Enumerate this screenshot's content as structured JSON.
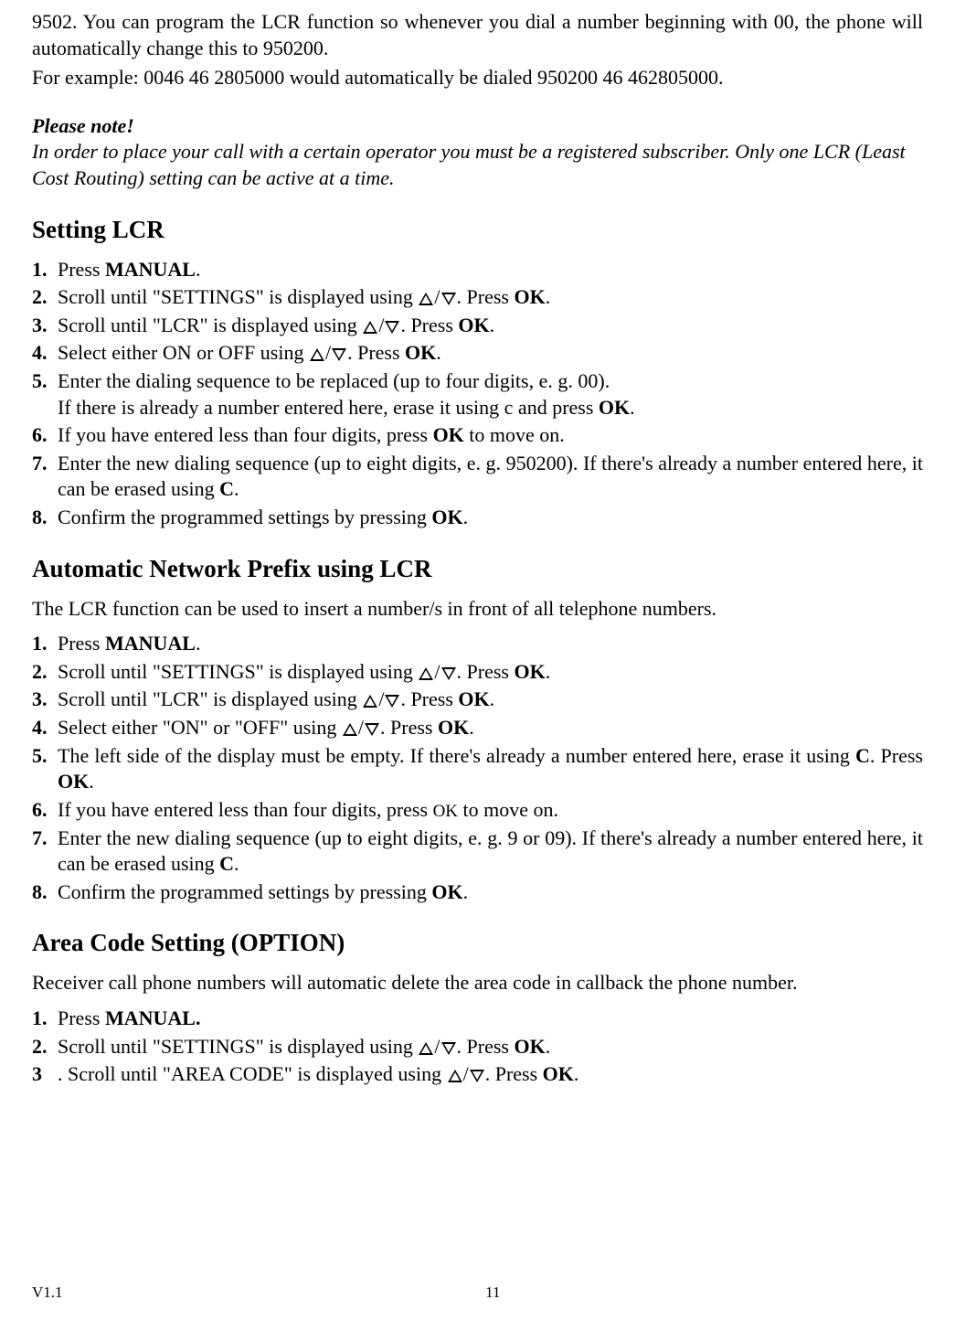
{
  "intro": {
    "line1": "9502. You can program the LCR function so whenever you dial a number beginning with 00, the phone will automatically change this to 950200.",
    "line2": "For example: 0046 46 2805000 would automatically be dialed 950200 46 462805000."
  },
  "note": {
    "title": "Please note!",
    "text": "In order to place your call with a certain operator you must be a registered subscriber. Only one LCR (Least Cost Routing) setting can be active at a time."
  },
  "section1": {
    "title": "Setting LCR",
    "items": [
      {
        "num": "1.",
        "pre": "Press ",
        "bold": "MANUAL",
        "post": "."
      },
      {
        "num": "2.",
        "pre": "Scroll until \"SETTINGS\" is displayed using ",
        "triangles": true,
        "post": ". Press ",
        "bold": "OK",
        "end": "."
      },
      {
        "num": "3.",
        "pre": "Scroll until \"LCR\" is displayed using ",
        "triangles": true,
        "post": ". Press ",
        "bold": "OK",
        "end": "."
      },
      {
        "num": "4.",
        "pre": "Select either ON or OFF using ",
        "triangles": true,
        "post": ". Press ",
        "bold": "OK",
        "end": "."
      },
      {
        "num": "5.",
        "pre": "Enter the dialing sequence to be replaced (up to four digits, e. g. 00).",
        "line2": "If there is already a number entered here, erase it using c and press ",
        "bold2": "OK",
        "end2": "."
      },
      {
        "num": "6.",
        "pre": "If you have entered less than four digits, press ",
        "bold": "OK",
        "post": " to move on."
      },
      {
        "num": "7.",
        "pre": "Enter the new dialing sequence (up to eight digits, e. g. 950200). If there's already a number entered here, it can be erased using ",
        "bold": "C",
        "post": "."
      },
      {
        "num": "8.",
        "pre": "Confirm the programmed settings by pressing ",
        "bold": "OK",
        "post": "."
      }
    ]
  },
  "section2": {
    "title": "Automatic Network Prefix using LCR",
    "desc": "The LCR function can be used to insert a number/s in front of all telephone numbers.",
    "items": [
      {
        "num": "1.",
        "pre": "Press ",
        "bold": "MANUAL",
        "post": "."
      },
      {
        "num": "2.",
        "pre": "Scroll until \"SETTINGS\" is displayed using ",
        "triangles": true,
        "post": ". Press ",
        "bold": "OK",
        "end": "."
      },
      {
        "num": "3.",
        "pre": "Scroll until \"LCR\" is displayed using ",
        "triangles": true,
        "post": ". Press ",
        "bold": "OK",
        "end": "."
      },
      {
        "num": "4.",
        "pre": "Select either \"ON\" or \"OFF\" using ",
        "triangles": true,
        "post": ". Press ",
        "bold": "OK",
        "end": "."
      },
      {
        "num": "5.",
        "pre": "The left side of the display must be empty. If there's already a number entered here, erase it using ",
        "bold": "C",
        "post": ". Press ",
        "bold2": "OK",
        "end": "."
      },
      {
        "num": "6.",
        "pre": "If you have entered less than four digits, press ",
        "sc": "OK",
        "post": " to move on."
      },
      {
        "num": "7.",
        "pre": "Enter the new dialing sequence (up to eight digits, e. g. 9 or 09). If   there's already a number entered here, it can be erased using ",
        "bold": "C",
        "post": "."
      },
      {
        "num": "8.",
        "pre": "Confirm the programmed settings by pressing ",
        "bold": "OK",
        "post": "."
      }
    ]
  },
  "section3": {
    "title": "Area Code Setting (OPTION)",
    "desc": "Receiver call phone numbers will automatic delete the area code in callback the phone number.",
    "items": [
      {
        "num": "1.",
        "pre": "Press ",
        "bold": "MANUAL.",
        "post": ""
      },
      {
        "num": "2.",
        "pre": "Scroll until \"SETTINGS\" is displayed using ",
        "triangles": true,
        "post": ". Press ",
        "bold": "OK",
        "end": "."
      },
      {
        "num": "3",
        "pre": ". Scroll until \"AREA CODE\" is displayed using ",
        "triangles": true,
        "post": ". Press ",
        "bold": "OK",
        "end": "."
      }
    ]
  },
  "footer": {
    "version": "V1.1",
    "page": "11"
  }
}
